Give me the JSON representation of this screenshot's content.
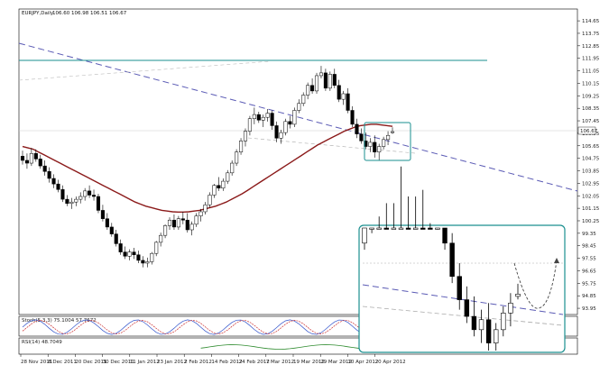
{
  "chart_data": {
    "type": "candlestick",
    "title": "EURJPY,Daily",
    "ohlc_readout": "106.60 106.98 106.51 106.67",
    "last_price": "106.67",
    "y_ticks": [
      "114.65",
      "113.75",
      "112.85",
      "111.95",
      "111.05",
      "110.15",
      "109.25",
      "108.35",
      "107.45",
      "106.55",
      "105.65",
      "104.75",
      "103.85",
      "102.95",
      "102.05",
      "101.15",
      "100.25",
      "99.35",
      "98.45",
      "97.55",
      "96.65",
      "95.75",
      "94.85",
      "93.95"
    ],
    "ylim": [
      93.5,
      115.5
    ],
    "x_ticks": [
      "28 Nov 2011",
      "8 Dec 2011",
      "20 Dec 2011",
      "30 Dec 2011",
      "11 Jan 2012",
      "23 Jan 2012",
      "2 Feb 2012",
      "14 Feb 2012",
      "24 Feb 2012",
      "7 Mar 2012",
      "19 Mar 2012",
      "29 Mar 2012",
      "10 Apr 2012",
      "20 Apr 2012"
    ],
    "candles": [
      [
        104.9,
        105.3,
        104.3,
        104.6
      ],
      [
        104.6,
        105.1,
        104.0,
        104.4
      ],
      [
        104.4,
        105.5,
        104.2,
        105.1
      ],
      [
        105.1,
        105.4,
        104.5,
        104.7
      ],
      [
        104.7,
        105.0,
        104.0,
        104.2
      ],
      [
        104.2,
        104.6,
        103.5,
        103.8
      ],
      [
        103.8,
        104.1,
        103.0,
        103.3
      ],
      [
        103.3,
        103.6,
        102.6,
        102.9
      ],
      [
        102.9,
        103.2,
        102.3,
        102.5
      ],
      [
        102.5,
        102.8,
        101.6,
        101.8
      ],
      [
        101.8,
        102.1,
        101.3,
        101.5
      ],
      [
        101.5,
        101.9,
        101.1,
        101.6
      ],
      [
        101.6,
        102.0,
        101.3,
        101.8
      ],
      [
        101.8,
        102.3,
        101.5,
        102.0
      ],
      [
        102.0,
        102.6,
        101.7,
        102.4
      ],
      [
        102.4,
        102.8,
        101.9,
        102.1
      ],
      [
        102.1,
        102.5,
        101.7,
        102.0
      ],
      [
        102.0,
        102.2,
        100.8,
        101.0
      ],
      [
        101.0,
        101.4,
        100.2,
        100.4
      ],
      [
        100.4,
        100.8,
        99.6,
        99.8
      ],
      [
        99.8,
        100.1,
        99.1,
        99.3
      ],
      [
        99.3,
        99.6,
        98.4,
        98.6
      ],
      [
        98.6,
        98.9,
        97.8,
        98.0
      ],
      [
        98.0,
        98.4,
        97.5,
        97.7
      ],
      [
        97.7,
        98.2,
        97.4,
        98.0
      ],
      [
        98.0,
        98.3,
        97.5,
        97.8
      ],
      [
        97.8,
        98.1,
        97.2,
        97.4
      ],
      [
        97.4,
        97.7,
        96.9,
        97.2
      ],
      [
        97.2,
        97.6,
        96.9,
        97.3
      ],
      [
        97.3,
        98.0,
        97.1,
        97.9
      ],
      [
        97.9,
        98.8,
        97.7,
        98.7
      ],
      [
        98.7,
        99.4,
        98.4,
        99.2
      ],
      [
        99.2,
        100.0,
        99.0,
        99.9
      ],
      [
        99.9,
        100.5,
        99.6,
        100.3
      ],
      [
        100.3,
        100.7,
        99.6,
        99.8
      ],
      [
        99.8,
        100.6,
        99.6,
        100.4
      ],
      [
        100.4,
        100.9,
        100.0,
        100.3
      ],
      [
        100.3,
        100.8,
        99.4,
        99.6
      ],
      [
        99.6,
        100.2,
        99.2,
        100.0
      ],
      [
        100.0,
        100.8,
        99.8,
        100.6
      ],
      [
        100.6,
        101.1,
        100.2,
        100.9
      ],
      [
        100.9,
        101.6,
        100.7,
        101.4
      ],
      [
        101.4,
        102.3,
        101.2,
        102.1
      ],
      [
        102.1,
        102.9,
        101.9,
        102.8
      ],
      [
        102.8,
        103.4,
        102.4,
        102.6
      ],
      [
        102.6,
        103.3,
        102.4,
        103.1
      ],
      [
        103.1,
        103.9,
        102.9,
        103.7
      ],
      [
        103.7,
        104.6,
        103.5,
        104.4
      ],
      [
        104.4,
        105.4,
        104.2,
        105.2
      ],
      [
        105.2,
        106.2,
        105.0,
        106.0
      ],
      [
        106.0,
        106.9,
        105.6,
        106.7
      ],
      [
        106.7,
        107.8,
        106.4,
        107.6
      ],
      [
        107.6,
        108.4,
        107.2,
        107.9
      ],
      [
        107.9,
        108.1,
        107.3,
        107.5
      ],
      [
        107.5,
        107.9,
        107.0,
        107.7
      ],
      [
        107.7,
        108.3,
        107.4,
        108.0
      ],
      [
        108.0,
        108.2,
        106.8,
        107.1
      ],
      [
        107.1,
        107.4,
        105.9,
        106.2
      ],
      [
        106.2,
        106.8,
        105.8,
        106.6
      ],
      [
        106.6,
        107.6,
        106.4,
        107.4
      ],
      [
        107.4,
        107.8,
        106.9,
        107.2
      ],
      [
        107.2,
        108.4,
        107.0,
        108.2
      ],
      [
        108.2,
        109.0,
        108.0,
        108.7
      ],
      [
        108.7,
        109.5,
        108.5,
        109.3
      ],
      [
        109.3,
        110.2,
        109.0,
        110.0
      ],
      [
        110.0,
        110.5,
        109.4,
        109.6
      ],
      [
        109.6,
        110.9,
        109.4,
        110.7
      ],
      [
        110.7,
        111.4,
        110.5,
        110.9
      ],
      [
        110.9,
        111.2,
        109.6,
        109.8
      ],
      [
        109.8,
        111.0,
        109.6,
        110.8
      ],
      [
        110.8,
        111.2,
        109.8,
        110.0
      ],
      [
        110.0,
        110.4,
        108.8,
        109.0
      ],
      [
        109.0,
        109.6,
        108.6,
        109.4
      ],
      [
        109.4,
        109.8,
        108.0,
        108.2
      ],
      [
        108.2,
        108.5,
        107.0,
        107.2
      ],
      [
        107.2,
        107.6,
        106.2,
        106.5
      ],
      [
        106.5,
        106.9,
        105.8,
        106.0
      ],
      [
        106.0,
        106.6,
        105.4,
        105.6
      ],
      [
        105.6,
        106.2,
        105.2,
        105.9
      ],
      [
        105.9,
        106.4,
        104.8,
        105.2
      ],
      [
        105.2,
        105.8,
        104.6,
        105.6
      ],
      [
        105.6,
        106.3,
        105.4,
        106.1
      ],
      [
        106.1,
        106.7,
        105.7,
        106.4
      ],
      [
        106.6,
        106.98,
        106.51,
        106.67
      ]
    ],
    "moving_average": [
      105.6,
      105.5,
      105.4,
      105.2,
      105.0,
      104.8,
      104.6,
      104.4,
      104.2,
      104.0,
      103.8,
      103.6,
      103.4,
      103.2,
      103.0,
      102.8,
      102.6,
      102.4,
      102.2,
      102.0,
      101.8,
      101.6,
      101.45,
      101.3,
      101.2,
      101.1,
      101.0,
      100.95,
      100.9,
      100.88,
      100.88,
      100.9,
      100.95,
      101.0,
      101.1,
      101.2,
      101.3,
      101.45,
      101.6,
      101.8,
      102.0,
      102.2,
      102.45,
      102.7,
      102.95,
      103.2,
      103.45,
      103.7,
      103.95,
      104.2,
      104.45,
      104.7,
      104.95,
      105.2,
      105.45,
      105.7,
      105.9,
      106.1,
      106.3,
      106.5,
      106.7,
      106.85,
      107.0,
      107.1,
      107.15,
      107.2,
      107.2,
      107.15,
      107.1,
      107.05
    ],
    "horizontal_level": 111.5,
    "inset": {
      "dotted_level": 97.55
    },
    "oscillators": [
      {
        "label": "Stoch(5,3,3) 75.1004 57.7672"
      },
      {
        "label": "RSI(14) 48.7049"
      }
    ]
  }
}
